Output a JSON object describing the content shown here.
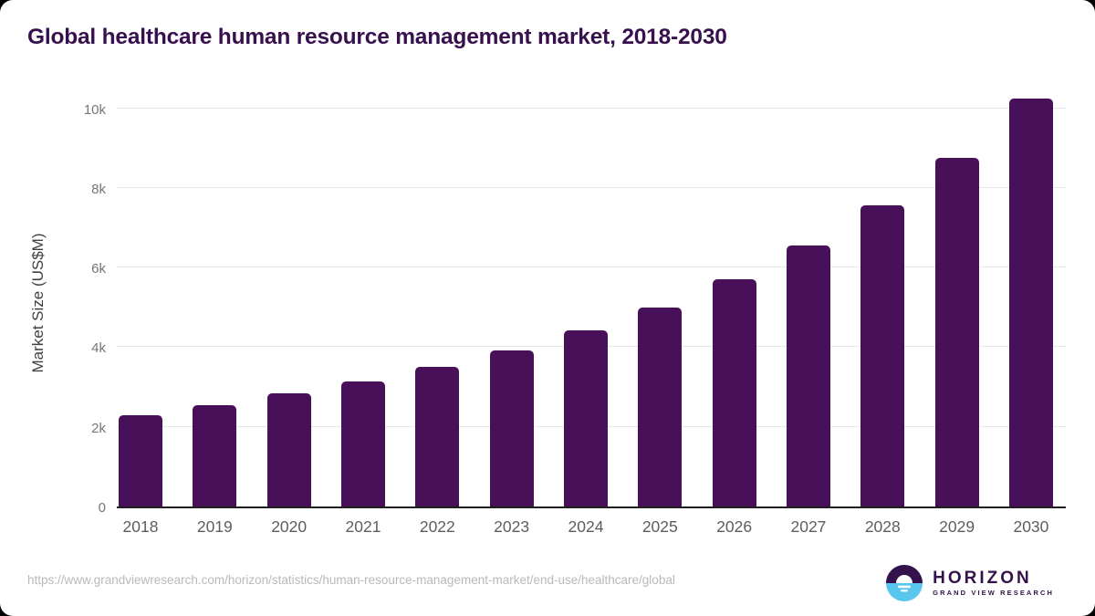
{
  "title": "Global healthcare human resource management market, 2018-2030",
  "chart_data": {
    "type": "bar",
    "title": "Global healthcare human resource management market, 2018-2030",
    "categories": [
      "2018",
      "2019",
      "2020",
      "2021",
      "2022",
      "2023",
      "2024",
      "2025",
      "2026",
      "2027",
      "2028",
      "2029",
      "2030"
    ],
    "values": [
      2300,
      2550,
      2830,
      3150,
      3500,
      3920,
      4430,
      5000,
      5700,
      6550,
      7550,
      8750,
      10250
    ],
    "xlabel": "",
    "ylabel": "Market Size (US$M)",
    "ylim": [
      0,
      10355
    ],
    "ytick_values": [
      0,
      2000,
      4000,
      6000,
      8000,
      10000
    ],
    "ytick_labels": [
      "0",
      "2k",
      "4k",
      "6k",
      "8k",
      "10k"
    ],
    "grid": true,
    "legend": "none",
    "bar_color": "#481059",
    "gridline_color": "#e6e6e6",
    "axis_line_color": "#1f1f1f"
  },
  "footer": {
    "source_url": "https://www.grandviewresearch.com/horizon/statistics/human-resource-management-market/end-use/healthcare/global",
    "logo": {
      "name": "HORIZON",
      "subtitle": "GRAND VIEW RESEARCH",
      "purple": "#35124b",
      "blue": "#59c6ee"
    }
  },
  "colors": {
    "title_text": "#38104e",
    "bar": "#481059",
    "tick_text": "#5d5d5d"
  }
}
